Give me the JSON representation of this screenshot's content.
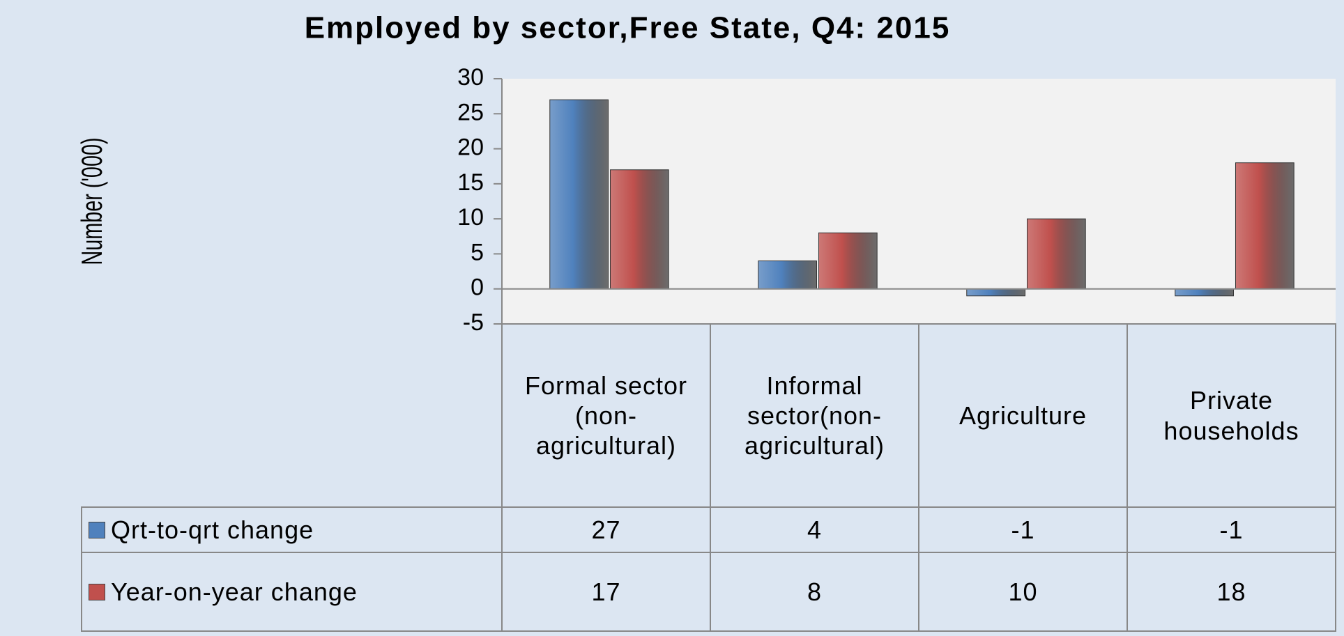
{
  "chart_data": {
    "type": "bar",
    "title": "Employed by sector,Free State, Q4: 2015",
    "y_label": "Number ('000)",
    "categories": [
      "Formal sector (non-agricultural)",
      "Informal sector(non-agricultural)",
      "Agriculture",
      "Private households"
    ],
    "series": [
      {
        "name": "Qrt-to-qrt change",
        "color": "#4f81bd",
        "values": [
          27,
          4,
          -1,
          -1
        ]
      },
      {
        "name": "Year-on-year change",
        "color": "#c0504d",
        "values": [
          17,
          8,
          10,
          18
        ]
      }
    ],
    "ylim": [
      -5,
      30
    ],
    "yticks": [
      -5,
      0,
      5,
      10,
      15,
      20,
      25,
      30
    ]
  }
}
